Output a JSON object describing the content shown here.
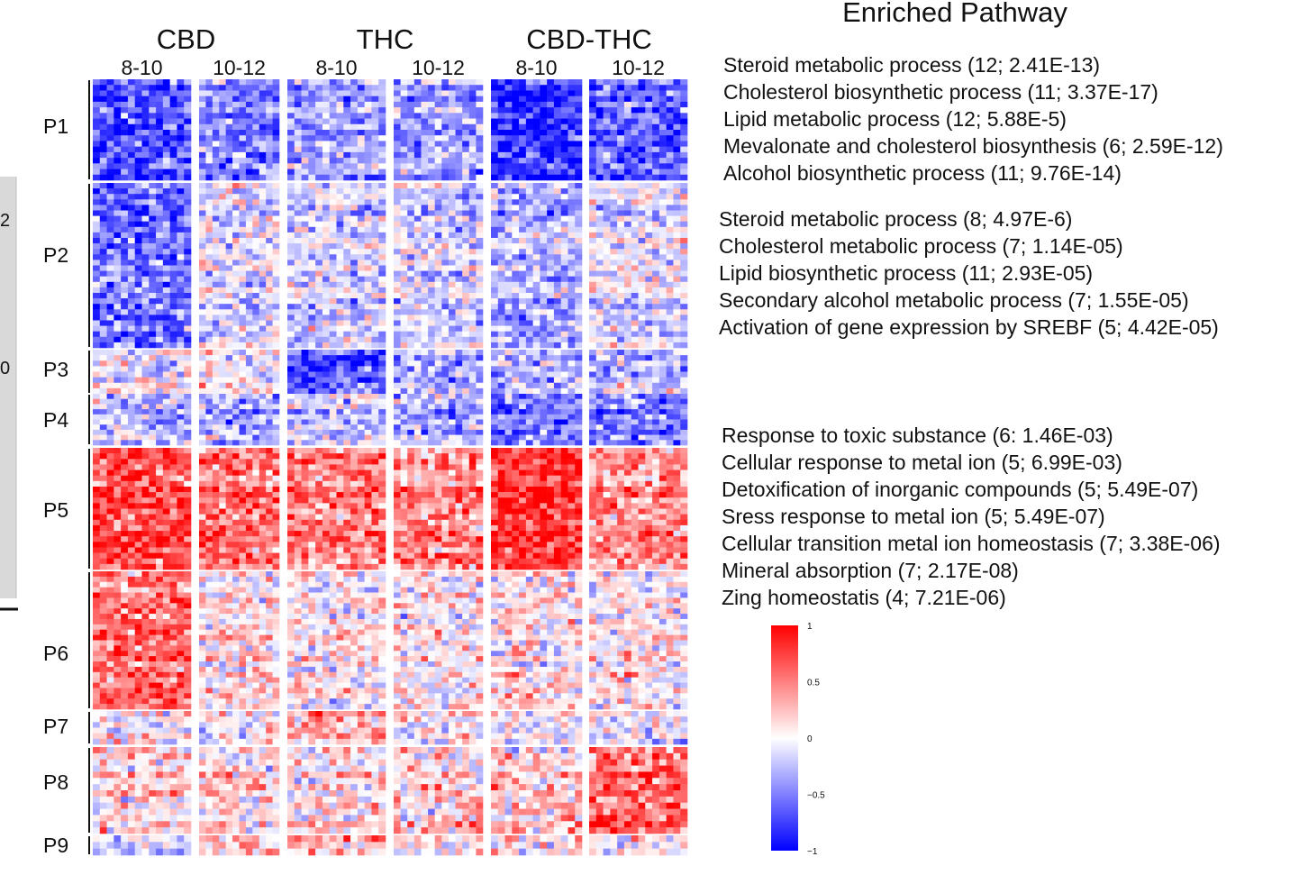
{
  "chart_data": {
    "type": "heatmap",
    "title": "Enriched Pathway",
    "groups": [
      {
        "label": "CBD",
        "subs": [
          "8-10",
          "10-12"
        ]
      },
      {
        "label": "THC",
        "subs": [
          "8-10",
          "10-12"
        ]
      },
      {
        "label": "CBD-THC",
        "subs": [
          "8-10",
          "10-12"
        ]
      }
    ],
    "clusters": [
      {
        "label": "P1",
        "rows": 18,
        "mean": [
          -0.65,
          -0.45,
          -0.35,
          -0.35,
          -0.8,
          -0.6
        ]
      },
      {
        "label": "P2",
        "rows": 30,
        "mean": [
          -0.55,
          -0.1,
          -0.15,
          -0.15,
          -0.3,
          -0.1
        ]
      },
      {
        "label": "P3",
        "rows": 8,
        "mean": [
          0.0,
          0.05,
          -0.6,
          -0.25,
          -0.2,
          -0.2
        ]
      },
      {
        "label": "P4",
        "rows": 10,
        "mean": [
          -0.25,
          -0.3,
          -0.2,
          -0.3,
          -0.5,
          -0.5
        ]
      },
      {
        "label": "P5",
        "rows": 22,
        "mean": [
          0.7,
          0.55,
          0.5,
          0.45,
          0.8,
          0.45
        ]
      },
      {
        "label": "P6",
        "rows": 26,
        "mean": [
          0.55,
          0.1,
          0.05,
          0.05,
          0.1,
          0.05
        ]
      },
      {
        "label": "P7",
        "rows": 6,
        "mean": [
          0.15,
          0.15,
          0.4,
          0.1,
          0.05,
          0.05
        ]
      },
      {
        "label": "P8",
        "rows": 14,
        "mean": [
          0.15,
          0.15,
          0.1,
          0.15,
          0.2,
          0.6
        ]
      },
      {
        "label": "P9",
        "rows": 3,
        "mean": [
          -0.2,
          0.2,
          0.3,
          0.1,
          0.1,
          0.05
        ]
      }
    ],
    "colorscale": {
      "min": -1,
      "max": 1,
      "colors": [
        "#0000ff",
        "#ffffff",
        "#ff0000"
      ]
    },
    "colorbar_ticks": [
      "1",
      "0.5",
      "0",
      "−0.5",
      "−1"
    ],
    "pathway_blocks": [
      [
        "Steroid metabolic process (12; 2.41E-13)",
        "Cholesterol biosynthetic process (11; 3.37E-17)",
        "Lipid metabolic process (12; 5.88E-5)",
        "Mevalonate and cholesterol biosynthesis (6; 2.59E-12)",
        "Alcohol biosynthetic process (11; 9.76E-14)"
      ],
      [
        "Steroid metabolic process (8; 4.97E-6)",
        "Cholesterol metabolic process (7; 1.14E-05)",
        "Lipid biosynthetic process (11; 2.93E-05)",
        "Secondary alcohol metabolic process (7; 1.55E-05)",
        "Activation of gene expression by SREBF (5; 4.42E-05)"
      ],
      [
        "Response to toxic substance (6: 1.46E-03)",
        "Cellular response to metal ion (5; 6.99E-03)",
        "Detoxification of inorganic compounds (5; 5.49E-07)",
        "Sress response to metal ion (5; 5.49E-07)",
        "Cellular transition metal ion  homeostasis (7; 3.38E-06)",
        "Mineral absorption (7; 2.17E-08)",
        "Zing homeostatis (4; 7.21E-06)"
      ]
    ],
    "side_ticks": [
      "2",
      "0"
    ]
  }
}
